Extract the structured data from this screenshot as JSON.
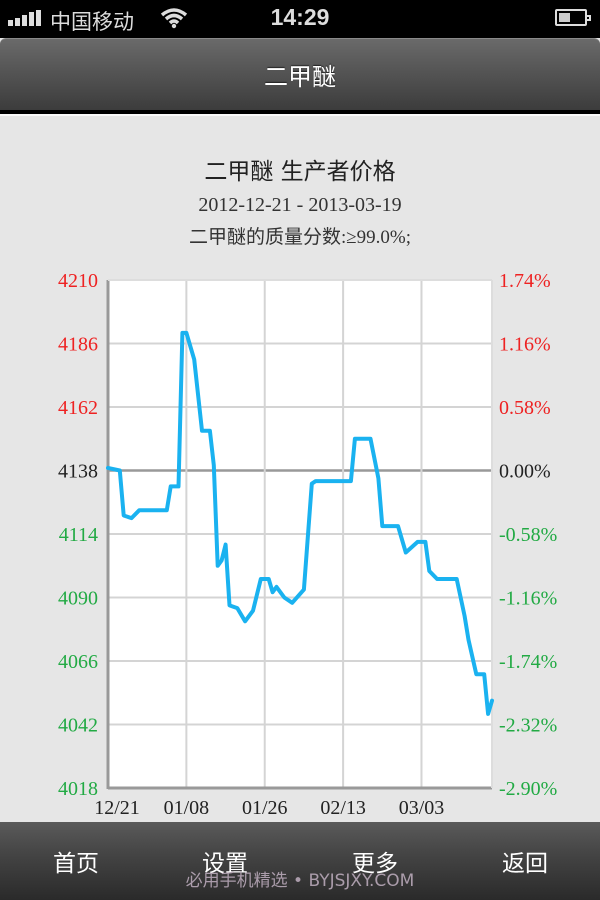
{
  "status_bar": {
    "carrier": "中国移动",
    "time": "14:29",
    "signal_icon": "signal-bars-icon",
    "wifi_icon": "wifi-icon",
    "battery_icon": "battery-icon"
  },
  "nav_bar": {
    "title": "二甲醚"
  },
  "chart_header": {
    "title": "二甲醚 生产者价格",
    "date_range": "2012-12-21 - 2013-03-19",
    "note": "二甲醚的质量分数:≥99.0%;"
  },
  "colors": {
    "line": "#1ab2f0",
    "positive": "#ee2222",
    "negative": "#22aa44",
    "neutral": "#222222",
    "grid": "#d4d4d4"
  },
  "chart_data": {
    "type": "line",
    "title": "二甲醚 生产者价格",
    "subtitle": "2012-12-21 - 2013-03-19",
    "xlabel": "",
    "ylabel": "",
    "x_tick_labels": [
      "12/21",
      "01/08",
      "01/26",
      "02/13",
      "03/03"
    ],
    "y_left_ticks": [
      4210,
      4186,
      4162,
      4138,
      4114,
      4090,
      4066,
      4042,
      4018
    ],
    "y_right_ticks": [
      "1.74%",
      "1.16%",
      "0.58%",
      "0.00%",
      "-0.58%",
      "-1.16%",
      "-1.74%",
      "-2.32%",
      "-2.90%"
    ],
    "ylim": [
      4018,
      4210
    ],
    "baseline": 4138,
    "grid": true,
    "legend": "none",
    "series": [
      {
        "name": "二甲醚 生产者价格",
        "points": [
          [
            0,
            4139
          ],
          [
            3,
            4138
          ],
          [
            4,
            4121
          ],
          [
            6,
            4120
          ],
          [
            8,
            4123
          ],
          [
            15,
            4123
          ],
          [
            16,
            4132
          ],
          [
            18,
            4132
          ],
          [
            19,
            4190
          ],
          [
            20,
            4190
          ],
          [
            22,
            4180
          ],
          [
            24,
            4153
          ],
          [
            26,
            4153
          ],
          [
            27,
            4140
          ],
          [
            28,
            4102
          ],
          [
            29,
            4104
          ],
          [
            30,
            4110
          ],
          [
            31,
            4087
          ],
          [
            33,
            4086
          ],
          [
            35,
            4081
          ],
          [
            37,
            4085
          ],
          [
            39,
            4097
          ],
          [
            41,
            4097
          ],
          [
            42,
            4092
          ],
          [
            43,
            4094
          ],
          [
            45,
            4090
          ],
          [
            47,
            4088
          ],
          [
            50,
            4093
          ],
          [
            52,
            4133
          ],
          [
            53,
            4134
          ],
          [
            62,
            4134
          ],
          [
            63,
            4150
          ],
          [
            67,
            4150
          ],
          [
            69,
            4135
          ],
          [
            70,
            4117
          ],
          [
            74,
            4117
          ],
          [
            76,
            4107
          ],
          [
            79,
            4111
          ],
          [
            81,
            4111
          ],
          [
            82,
            4100
          ],
          [
            84,
            4097
          ],
          [
            89,
            4097
          ],
          [
            91,
            4083
          ],
          [
            92,
            4074
          ],
          [
            94,
            4061
          ],
          [
            96,
            4061
          ],
          [
            97,
            4046
          ],
          [
            98,
            4051
          ]
        ]
      }
    ],
    "x_range_days": [
      0,
      98
    ]
  },
  "tab_bar": {
    "tabs": [
      {
        "label": "首页"
      },
      {
        "label": "设置"
      },
      {
        "label": "更多"
      },
      {
        "label": "返回"
      }
    ],
    "watermark": "必用手机精选 • BYJSJXY.COM"
  }
}
